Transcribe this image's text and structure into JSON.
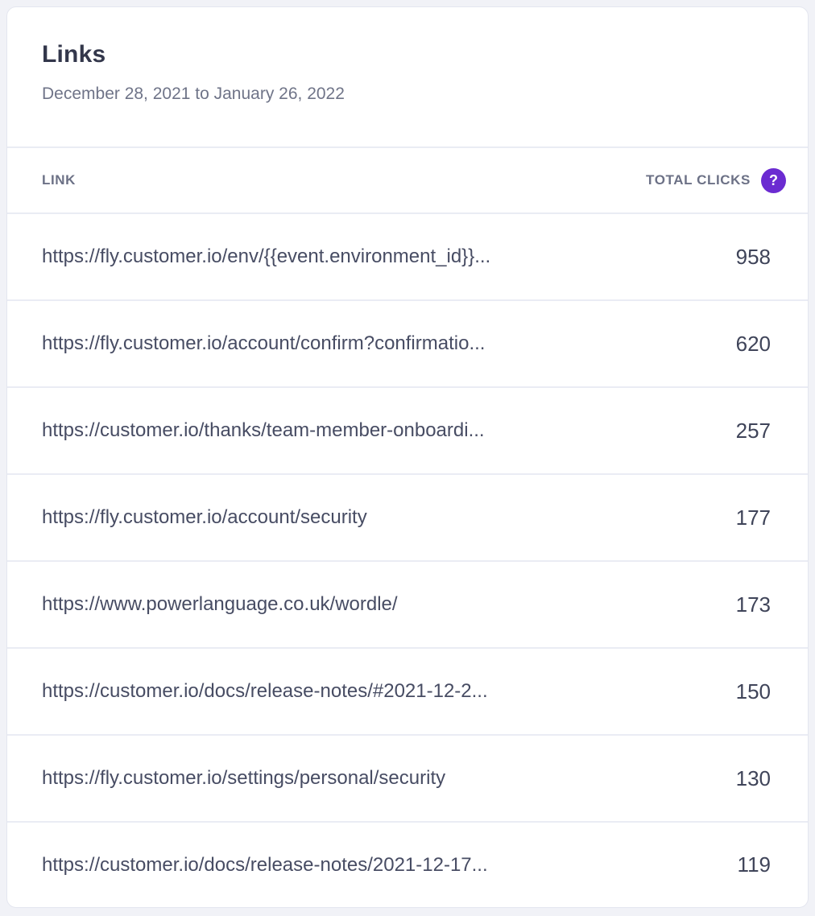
{
  "card": {
    "title": "Links",
    "date_range": "December 28, 2021 to January 26, 2022"
  },
  "table": {
    "columns": {
      "link": "LINK",
      "total_clicks": "TOTAL CLICKS"
    },
    "help_icon": {
      "glyph": "?",
      "color": "#6b2bd1"
    },
    "rows": [
      {
        "link": "https://fly.customer.io/env/{{event.environment_id}}...",
        "clicks": "958"
      },
      {
        "link": "https://fly.customer.io/account/confirm?confirmatio...",
        "clicks": "620"
      },
      {
        "link": "https://customer.io/thanks/team-member-onboardi...",
        "clicks": "257"
      },
      {
        "link": "https://fly.customer.io/account/security",
        "clicks": "177"
      },
      {
        "link": "https://www.powerlanguage.co.uk/wordle/",
        "clicks": "173"
      },
      {
        "link": "https://customer.io/docs/release-notes/#2021-12-2...",
        "clicks": "150"
      },
      {
        "link": "https://fly.customer.io/settings/personal/security",
        "clicks": "130"
      },
      {
        "link": "https://customer.io/docs/release-notes/2021-12-17...",
        "clicks": "119"
      }
    ]
  },
  "colors": {
    "page_background": "#f1f2f7",
    "card_background": "#ffffff",
    "card_border": "#e4e6ef",
    "row_separator": "#eaecf4",
    "accent_purple": "#6b2bd1",
    "title_text": "#33374b",
    "body_text": "#474c63",
    "muted_text": "#6f7488"
  }
}
